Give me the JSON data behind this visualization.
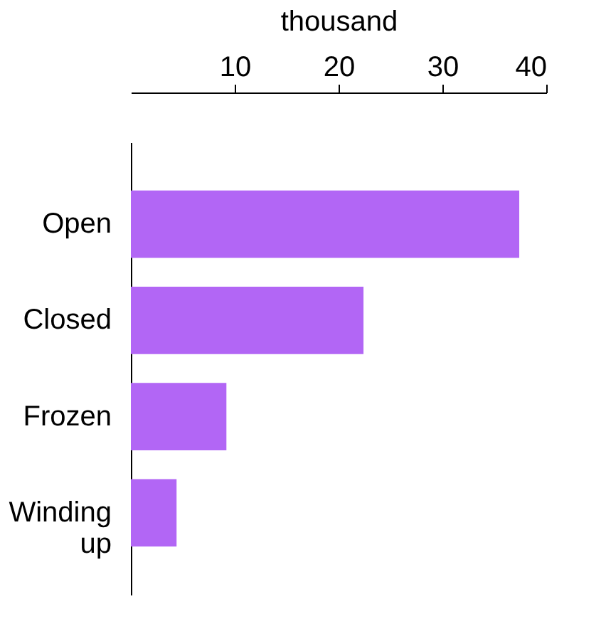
{
  "chart_data": {
    "type": "bar",
    "orientation": "horizontal",
    "xlabel": "thousand",
    "categories": [
      "Open",
      "Closed",
      "Frozen",
      "Winding up"
    ],
    "values": [
      37.4,
      22.4,
      9.2,
      4.4
    ],
    "color": "#b266f5",
    "xlim": [
      0,
      40
    ],
    "xticks": [
      10,
      20,
      30,
      40
    ],
    "grid": false
  }
}
